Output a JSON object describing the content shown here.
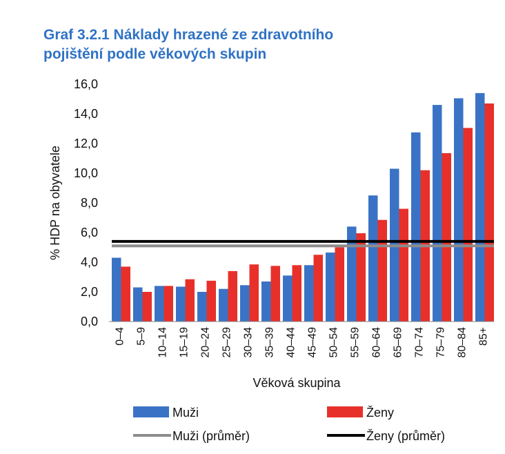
{
  "chart_data": {
    "type": "bar",
    "title_line1": "Graf 3.2.1 Náklady hrazené ze zdravotního",
    "title_line2": "pojištění podle věkových skupin",
    "xlabel": "Věková skupina",
    "ylabel": "% HDP na obyvatele",
    "ylim": [
      0,
      16
    ],
    "yticks": [
      "0,0",
      "2,0",
      "4,0",
      "6,0",
      "8,0",
      "10,0",
      "12,0",
      "14,0",
      "16,0"
    ],
    "categories": [
      "0–4",
      "5–9",
      "10–14",
      "15–19",
      "20–24",
      "25–29",
      "30–34",
      "35–39",
      "40–44",
      "45–49",
      "50–54",
      "55–59",
      "60–64",
      "65–69",
      "70–74",
      "75–79",
      "80–84",
      "85+"
    ],
    "series": [
      {
        "name": "Muži",
        "color": "#3a73c5",
        "values": [
          4.3,
          2.3,
          2.4,
          2.35,
          2.0,
          2.2,
          2.45,
          2.7,
          3.1,
          3.8,
          4.65,
          6.4,
          8.5,
          10.3,
          12.75,
          14.6,
          15.05,
          15.4
        ]
      },
      {
        "name": "Ženy",
        "color": "#e8302a",
        "values": [
          3.7,
          2.0,
          2.4,
          2.85,
          2.75,
          3.4,
          3.85,
          3.75,
          3.8,
          4.5,
          5.0,
          5.95,
          6.85,
          7.6,
          10.2,
          11.35,
          13.05,
          14.7
        ]
      }
    ],
    "averages": [
      {
        "name": "Muži (průměr)",
        "color": "#8c8c8c",
        "value": 5.1
      },
      {
        "name": "Ženy (průměr)",
        "color": "#000000",
        "value": 5.4
      }
    ],
    "legend_position": "bottom",
    "grid": false
  }
}
